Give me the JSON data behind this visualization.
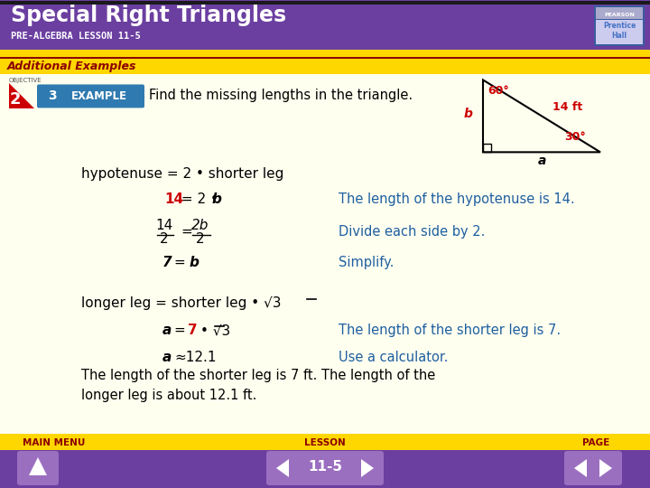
{
  "title": "Special Right Triangles",
  "subtitle": "PRE-ALGEBRA LESSON 11-5",
  "header_bg": "#6B3FA0",
  "header_text_color": "#FFFFFF",
  "yellow_bar_color": "#FFD700",
  "additional_examples_text": "Additional Examples",
  "additional_examples_text_color": "#8B0000",
  "body_bg": "#FFFFF0",
  "objective_num": "2",
  "example_num": "3",
  "example_label": "EXAMPLE",
  "example_bg": "#2F7AB0",
  "find_text": "Find the missing lengths in the triangle.",
  "triangle_label_b": "b",
  "triangle_label_a": "a",
  "triangle_angle_60": "60°",
  "triangle_angle_30": "30°",
  "triangle_side_14": "14 ft",
  "red_color": "#CC0000",
  "blue_color": "#1E5FA0",
  "line1_black": "hypotenuse = 2 • shorter leg",
  "line2_red": "14",
  "line2_black": " = 2 • ",
  "line2_italic": "b",
  "line3_frac_num": "14",
  "line3_frac_den": "2",
  "line3_eq_frac_num": "2b",
  "line3_eq_frac_den": "2",
  "note1": "The length of the hypotenuse is 14.",
  "note2": "Divide each side by 2.",
  "note3": "Simplify.",
  "note4": "The length of the shorter leg is 7.",
  "note5": "Use a calculator.",
  "line7_approx": "≈12.1",
  "summary": "The length of the shorter leg is 7 ft. The length of the\nlonger leg is about 12.1 ft.",
  "footer_bg": "#FFD700",
  "footer_purple": "#6B3FA0",
  "footer_labels": [
    "MAIN MENU",
    "LESSON",
    "PAGE"
  ],
  "footer_page": "11-5"
}
